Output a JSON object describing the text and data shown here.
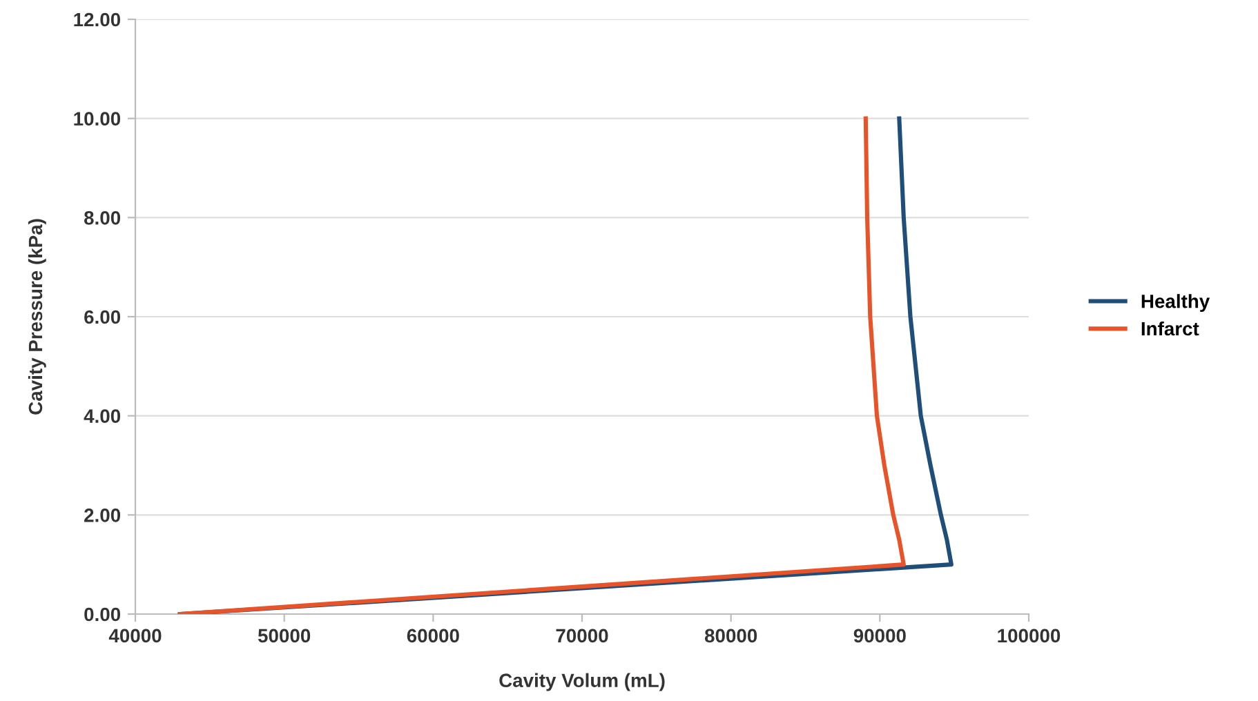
{
  "chart_data": {
    "type": "line",
    "xlabel": "Cavity Volum (mL)",
    "ylabel": "Cavity Pressure (kPa)",
    "series": [
      {
        "name": "Healthy",
        "color": "#1f4e79",
        "x": [
          43000,
          94800,
          94500,
          94100,
          93400,
          92750,
          92050,
          91600,
          91300
        ],
        "values": [
          0,
          1,
          1.5,
          2,
          3,
          4,
          6,
          8,
          10
        ]
      },
      {
        "name": "Infarct",
        "color": "#e8542a",
        "x": [
          43000,
          91600,
          91300,
          90900,
          90300,
          89800,
          89350,
          89150,
          89050
        ],
        "values": [
          0,
          1,
          1.5,
          2,
          3,
          4,
          6,
          8,
          10
        ]
      }
    ],
    "xlim": [
      40000,
      100000
    ],
    "xticks": [
      40000,
      50000,
      60000,
      70000,
      80000,
      90000,
      100000
    ],
    "ylim": [
      0,
      12
    ],
    "yticks": [
      {
        "value": 0,
        "label": "0.00"
      },
      {
        "value": 2,
        "label": "2.00"
      },
      {
        "value": 4,
        "label": "4.00"
      },
      {
        "value": 6,
        "label": "6.00"
      },
      {
        "value": 8,
        "label": "8.00"
      },
      {
        "value": 10,
        "label": "10.00"
      },
      {
        "value": 12,
        "label": "12.00"
      }
    ],
    "grid": "y",
    "legend": "right",
    "marker": "none",
    "line_style": "solid"
  }
}
